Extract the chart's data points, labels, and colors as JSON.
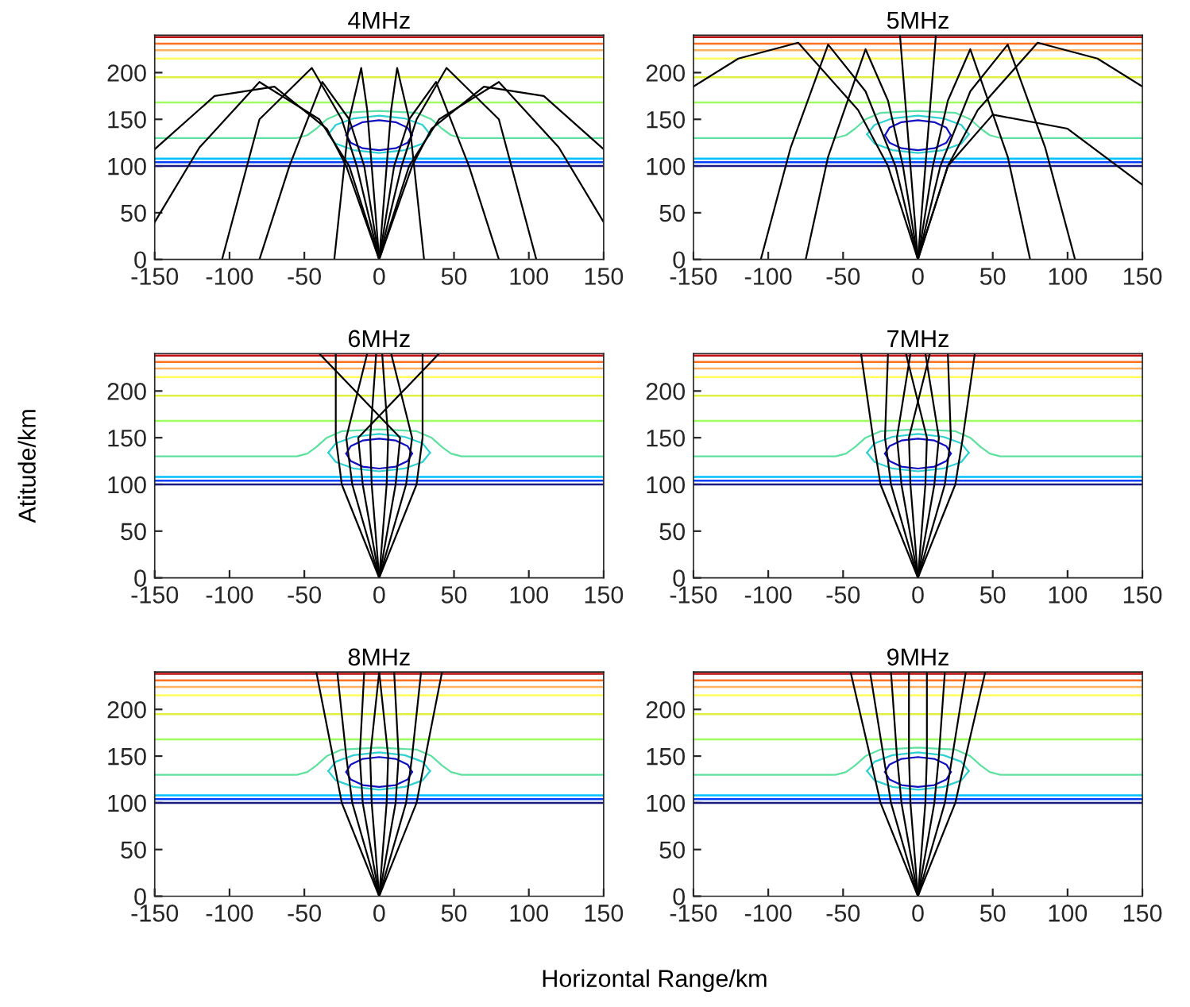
{
  "chart_data": [
    {
      "type": "line",
      "title": "4MHz",
      "xlim": [
        -150,
        150
      ],
      "xticks": [
        -150,
        -100,
        -50,
        0,
        50,
        100,
        150
      ],
      "ylim": [
        0,
        240
      ],
      "yticks": [
        0,
        50,
        100,
        150,
        200
      ],
      "grid": false,
      "legend": false,
      "ref_lines": [
        {
          "axis": "y",
          "value": 100,
          "color": "#1a1a80"
        },
        {
          "axis": "y",
          "value": 104,
          "color": "#0040ff"
        },
        {
          "axis": "y",
          "value": 108,
          "color": "#00c0ff"
        },
        {
          "axis": "y",
          "value": 168,
          "color": "#a0ff60"
        },
        {
          "axis": "y",
          "value": 195,
          "color": "#e0f040"
        },
        {
          "axis": "y",
          "value": 215,
          "color": "#ffff60"
        },
        {
          "axis": "y",
          "value": 224,
          "color": "#ffb060"
        },
        {
          "axis": "y",
          "value": 231,
          "color": "#ff7020"
        },
        {
          "axis": "y",
          "value": 238,
          "color": "#c01010"
        }
      ],
      "series": [
        {
          "color": "#60e0a0",
          "x": [
            -150,
            -55,
            -48,
            -42,
            -35,
            -25,
            0,
            25,
            35,
            42,
            48,
            55,
            150
          ],
          "values": [
            130,
            130,
            133,
            140,
            150,
            157,
            159,
            157,
            150,
            140,
            133,
            130,
            130
          ]
        },
        {
          "color": "#30d0d0",
          "x": [
            -34,
            -29,
            -17,
            0,
            17,
            29,
            34
          ],
          "values": [
            134,
            144,
            151,
            154,
            151,
            144,
            134
          ]
        },
        {
          "color": "#30d0d0",
          "x": [
            -34,
            -29,
            -17,
            0,
            17,
            29,
            34
          ],
          "values": [
            134,
            124,
            117,
            114,
            117,
            124,
            134
          ]
        },
        {
          "color": "#1010c0",
          "x": [
            -22,
            -19,
            -11,
            0,
            11,
            19,
            22
          ],
          "values": [
            133,
            141,
            147,
            149,
            147,
            141,
            133
          ]
        },
        {
          "color": "#1010c0",
          "x": [
            -22,
            -19,
            -11,
            0,
            11,
            19,
            22
          ],
          "values": [
            133,
            125,
            119,
            117,
            119,
            125,
            133
          ]
        },
        {
          "color": "#000000",
          "x": [
            0,
            -22,
            -35,
            -70,
            -110,
            -150
          ],
          "values": [
            0,
            100,
            140,
            185,
            175,
            118
          ]
        },
        {
          "color": "#000000",
          "x": [
            0,
            22,
            35,
            70,
            110,
            150
          ],
          "values": [
            0,
            100,
            140,
            185,
            175,
            118
          ]
        },
        {
          "color": "#000000",
          "x": [
            0,
            -15,
            -25,
            -45,
            -80,
            -105
          ],
          "values": [
            0,
            100,
            150,
            205,
            150,
            0
          ]
        },
        {
          "color": "#000000",
          "x": [
            0,
            15,
            25,
            45,
            80,
            105
          ],
          "values": [
            0,
            100,
            150,
            205,
            150,
            0
          ]
        },
        {
          "color": "#000000",
          "x": [
            0,
            -10,
            -20,
            -38,
            -60,
            -80
          ],
          "values": [
            0,
            100,
            150,
            190,
            100,
            0
          ]
        },
        {
          "color": "#000000",
          "x": [
            0,
            10,
            20,
            38,
            60,
            80
          ],
          "values": [
            0,
            100,
            150,
            190,
            100,
            0
          ]
        },
        {
          "color": "#000000",
          "x": [
            0,
            -5,
            -8,
            -12,
            -20,
            -30
          ],
          "values": [
            0,
            100,
            160,
            205,
            150,
            0
          ]
        },
        {
          "color": "#000000",
          "x": [
            0,
            5,
            8,
            12,
            20,
            30
          ],
          "values": [
            0,
            100,
            160,
            205,
            150,
            0
          ]
        },
        {
          "color": "#000000",
          "x": [
            0,
            -20,
            -40,
            -80,
            -120,
            -150
          ],
          "values": [
            0,
            100,
            150,
            190,
            120,
            40
          ]
        },
        {
          "color": "#000000",
          "x": [
            0,
            20,
            40,
            80,
            120,
            150
          ],
          "values": [
            0,
            100,
            150,
            190,
            120,
            40
          ]
        }
      ]
    },
    {
      "type": "line",
      "title": "5MHz",
      "xlim": [
        -150,
        150
      ],
      "xticks": [
        -150,
        -100,
        -50,
        0,
        50,
        100,
        150
      ],
      "ylim": [
        0,
        240
      ],
      "yticks": [
        0,
        50,
        100,
        150,
        200
      ],
      "grid": false,
      "legend": false,
      "ref_lines": [
        {
          "axis": "y",
          "value": 100,
          "color": "#1a1a80"
        },
        {
          "axis": "y",
          "value": 104,
          "color": "#0040ff"
        },
        {
          "axis": "y",
          "value": 108,
          "color": "#00c0ff"
        },
        {
          "axis": "y",
          "value": 168,
          "color": "#a0ff60"
        },
        {
          "axis": "y",
          "value": 195,
          "color": "#e0f040"
        },
        {
          "axis": "y",
          "value": 215,
          "color": "#ffff60"
        },
        {
          "axis": "y",
          "value": 224,
          "color": "#ffb060"
        },
        {
          "axis": "y",
          "value": 231,
          "color": "#ff7020"
        },
        {
          "axis": "y",
          "value": 238,
          "color": "#c01010"
        }
      ],
      "series": [
        {
          "color": "#60e0a0",
          "x": [
            -150,
            -55,
            -48,
            -42,
            -35,
            -25,
            0,
            25,
            35,
            42,
            48,
            55,
            150
          ],
          "values": [
            130,
            130,
            133,
            140,
            150,
            157,
            159,
            157,
            150,
            140,
            133,
            130,
            130
          ]
        },
        {
          "color": "#30d0d0",
          "x": [
            -34,
            -29,
            -17,
            0,
            17,
            29,
            34
          ],
          "values": [
            134,
            144,
            151,
            154,
            151,
            144,
            134
          ]
        },
        {
          "color": "#30d0d0",
          "x": [
            -34,
            -29,
            -17,
            0,
            17,
            29,
            34
          ],
          "values": [
            134,
            124,
            117,
            114,
            117,
            124,
            134
          ]
        },
        {
          "color": "#1010c0",
          "x": [
            -22,
            -19,
            -11,
            0,
            11,
            19,
            22
          ],
          "values": [
            133,
            141,
            147,
            149,
            147,
            141,
            133
          ]
        },
        {
          "color": "#1010c0",
          "x": [
            -22,
            -19,
            -11,
            0,
            11,
            19,
            22
          ],
          "values": [
            133,
            125,
            119,
            117,
            119,
            125,
            133
          ]
        },
        {
          "color": "#000000",
          "x": [
            0,
            -20,
            -40,
            -80,
            -120,
            -150
          ],
          "values": [
            0,
            100,
            160,
            232,
            215,
            185
          ]
        },
        {
          "color": "#000000",
          "x": [
            0,
            20,
            40,
            80,
            120,
            150
          ],
          "values": [
            0,
            100,
            160,
            232,
            215,
            185
          ]
        },
        {
          "color": "#000000",
          "x": [
            0,
            -15,
            -35,
            -60,
            -85,
            -105
          ],
          "values": [
            0,
            100,
            180,
            230,
            120,
            0
          ]
        },
        {
          "color": "#000000",
          "x": [
            0,
            15,
            35,
            60,
            85,
            105
          ],
          "values": [
            0,
            100,
            180,
            230,
            120,
            0
          ]
        },
        {
          "color": "#000000",
          "x": [
            0,
            -10,
            -20,
            -35,
            -60,
            -75
          ],
          "values": [
            0,
            100,
            170,
            225,
            110,
            0
          ]
        },
        {
          "color": "#000000",
          "x": [
            0,
            10,
            20,
            35,
            60,
            75
          ],
          "values": [
            0,
            100,
            170,
            225,
            110,
            0
          ]
        },
        {
          "color": "#000000",
          "x": [
            0,
            -5,
            -12
          ],
          "values": [
            0,
            100,
            240
          ]
        },
        {
          "color": "#000000",
          "x": [
            0,
            5,
            12
          ],
          "values": [
            0,
            100,
            240
          ]
        },
        {
          "color": "#000000",
          "x": [
            0,
            20,
            50,
            100,
            150
          ],
          "values": [
            0,
            100,
            155,
            140,
            80
          ]
        }
      ]
    },
    {
      "type": "line",
      "title": "6MHz",
      "ylabel": "Atitude/km",
      "xlim": [
        -150,
        150
      ],
      "xticks": [
        -150,
        -100,
        -50,
        0,
        50,
        100,
        150
      ],
      "ylim": [
        0,
        240
      ],
      "yticks": [
        0,
        50,
        100,
        150,
        200
      ],
      "grid": false,
      "legend": false,
      "ref_lines": [
        {
          "axis": "y",
          "value": 100,
          "color": "#1a1a80"
        },
        {
          "axis": "y",
          "value": 104,
          "color": "#0040ff"
        },
        {
          "axis": "y",
          "value": 108,
          "color": "#00c0ff"
        },
        {
          "axis": "y",
          "value": 168,
          "color": "#a0ff60"
        },
        {
          "axis": "y",
          "value": 195,
          "color": "#e0f040"
        },
        {
          "axis": "y",
          "value": 215,
          "color": "#ffff60"
        },
        {
          "axis": "y",
          "value": 224,
          "color": "#ffb060"
        },
        {
          "axis": "y",
          "value": 231,
          "color": "#ff7020"
        },
        {
          "axis": "y",
          "value": 238,
          "color": "#c01010"
        }
      ],
      "series": [
        {
          "color": "#60e0a0",
          "x": [
            -150,
            -55,
            -48,
            -42,
            -35,
            -25,
            0,
            25,
            35,
            42,
            48,
            55,
            150
          ],
          "values": [
            130,
            130,
            133,
            140,
            150,
            157,
            159,
            157,
            150,
            140,
            133,
            130,
            130
          ]
        },
        {
          "color": "#30d0d0",
          "x": [
            -34,
            -29,
            -17,
            0,
            17,
            29,
            34
          ],
          "values": [
            134,
            144,
            151,
            154,
            151,
            144,
            134
          ]
        },
        {
          "color": "#30d0d0",
          "x": [
            -34,
            -29,
            -17,
            0,
            17,
            29,
            34
          ],
          "values": [
            134,
            124,
            117,
            114,
            117,
            124,
            134
          ]
        },
        {
          "color": "#1010c0",
          "x": [
            -22,
            -19,
            -11,
            0,
            11,
            19,
            22
          ],
          "values": [
            133,
            141,
            147,
            149,
            147,
            141,
            133
          ]
        },
        {
          "color": "#1010c0",
          "x": [
            -22,
            -19,
            -11,
            0,
            11,
            19,
            22
          ],
          "values": [
            133,
            125,
            119,
            117,
            119,
            125,
            133
          ]
        },
        {
          "color": "#000000",
          "x": [
            0,
            25,
            29,
            29
          ],
          "values": [
            0,
            100,
            150,
            240
          ]
        },
        {
          "color": "#000000",
          "x": [
            0,
            -25,
            -29,
            -29
          ],
          "values": [
            0,
            100,
            150,
            240
          ]
        },
        {
          "color": "#000000",
          "x": [
            0,
            18,
            22,
            8
          ],
          "values": [
            0,
            100,
            150,
            240
          ]
        },
        {
          "color": "#000000",
          "x": [
            0,
            -18,
            -22,
            -8
          ],
          "values": [
            0,
            100,
            150,
            240
          ]
        },
        {
          "color": "#000000",
          "x": [
            0,
            11,
            14,
            -40
          ],
          "values": [
            0,
            100,
            150,
            240
          ]
        },
        {
          "color": "#000000",
          "x": [
            0,
            -11,
            -14,
            40
          ],
          "values": [
            0,
            100,
            150,
            240
          ]
        },
        {
          "color": "#000000",
          "x": [
            0,
            5,
            6,
            2
          ],
          "values": [
            0,
            100,
            150,
            240
          ]
        },
        {
          "color": "#000000",
          "x": [
            0,
            -5,
            -6,
            -2
          ],
          "values": [
            0,
            100,
            150,
            240
          ]
        }
      ]
    },
    {
      "type": "line",
      "title": "7MHz",
      "xlim": [
        -150,
        150
      ],
      "xticks": [
        -150,
        -100,
        -50,
        0,
        50,
        100,
        150
      ],
      "ylim": [
        0,
        240
      ],
      "yticks": [
        0,
        50,
        100,
        150,
        200
      ],
      "grid": false,
      "legend": false,
      "ref_lines": [
        {
          "axis": "y",
          "value": 100,
          "color": "#1a1a80"
        },
        {
          "axis": "y",
          "value": 104,
          "color": "#0040ff"
        },
        {
          "axis": "y",
          "value": 108,
          "color": "#00c0ff"
        },
        {
          "axis": "y",
          "value": 168,
          "color": "#a0ff60"
        },
        {
          "axis": "y",
          "value": 195,
          "color": "#e0f040"
        },
        {
          "axis": "y",
          "value": 215,
          "color": "#ffff60"
        },
        {
          "axis": "y",
          "value": 224,
          "color": "#ffb060"
        },
        {
          "axis": "y",
          "value": 231,
          "color": "#ff7020"
        },
        {
          "axis": "y",
          "value": 238,
          "color": "#c01010"
        }
      ],
      "series": [
        {
          "color": "#60e0a0",
          "x": [
            -150,
            -55,
            -48,
            -42,
            -35,
            -25,
            0,
            25,
            35,
            42,
            48,
            55,
            150
          ],
          "values": [
            130,
            130,
            133,
            140,
            150,
            157,
            159,
            157,
            150,
            140,
            133,
            130,
            130
          ]
        },
        {
          "color": "#30d0d0",
          "x": [
            -34,
            -29,
            -17,
            0,
            17,
            29,
            34
          ],
          "values": [
            134,
            144,
            151,
            154,
            151,
            144,
            134
          ]
        },
        {
          "color": "#30d0d0",
          "x": [
            -34,
            -29,
            -17,
            0,
            17,
            29,
            34
          ],
          "values": [
            134,
            124,
            117,
            114,
            117,
            124,
            134
          ]
        },
        {
          "color": "#1010c0",
          "x": [
            -22,
            -19,
            -11,
            0,
            11,
            19,
            22
          ],
          "values": [
            133,
            141,
            147,
            149,
            147,
            141,
            133
          ]
        },
        {
          "color": "#1010c0",
          "x": [
            -22,
            -19,
            -11,
            0,
            11,
            19,
            22
          ],
          "values": [
            133,
            125,
            119,
            117,
            119,
            125,
            133
          ]
        },
        {
          "color": "#000000",
          "x": [
            0,
            25,
            30,
            38
          ],
          "values": [
            0,
            100,
            150,
            240
          ]
        },
        {
          "color": "#000000",
          "x": [
            0,
            -25,
            -30,
            -38
          ],
          "values": [
            0,
            100,
            150,
            240
          ]
        },
        {
          "color": "#000000",
          "x": [
            0,
            18,
            22,
            20
          ],
          "values": [
            0,
            100,
            150,
            240
          ]
        },
        {
          "color": "#000000",
          "x": [
            0,
            -18,
            -22,
            -20
          ],
          "values": [
            0,
            100,
            150,
            240
          ]
        },
        {
          "color": "#000000",
          "x": [
            0,
            11,
            14,
            5
          ],
          "values": [
            0,
            100,
            150,
            240
          ]
        },
        {
          "color": "#000000",
          "x": [
            0,
            -11,
            -14,
            -5
          ],
          "values": [
            0,
            100,
            150,
            240
          ]
        },
        {
          "color": "#000000",
          "x": [
            0,
            5,
            6,
            -8
          ],
          "values": [
            0,
            100,
            150,
            240
          ]
        },
        {
          "color": "#000000",
          "x": [
            0,
            -5,
            -6,
            8
          ],
          "values": [
            0,
            100,
            150,
            240
          ]
        }
      ]
    },
    {
      "type": "line",
      "title": "8MHz",
      "xlabel": "Horizontal Range/km",
      "xlim": [
        -150,
        150
      ],
      "xticks": [
        -150,
        -100,
        -50,
        0,
        50,
        100,
        150
      ],
      "ylim": [
        0,
        240
      ],
      "yticks": [
        0,
        50,
        100,
        150,
        200
      ],
      "grid": false,
      "legend": false,
      "ref_lines": [
        {
          "axis": "y",
          "value": 100,
          "color": "#1a1a80"
        },
        {
          "axis": "y",
          "value": 104,
          "color": "#0040ff"
        },
        {
          "axis": "y",
          "value": 108,
          "color": "#00c0ff"
        },
        {
          "axis": "y",
          "value": 168,
          "color": "#a0ff60"
        },
        {
          "axis": "y",
          "value": 195,
          "color": "#e0f040"
        },
        {
          "axis": "y",
          "value": 215,
          "color": "#ffff60"
        },
        {
          "axis": "y",
          "value": 224,
          "color": "#ffb060"
        },
        {
          "axis": "y",
          "value": 231,
          "color": "#ff7020"
        },
        {
          "axis": "y",
          "value": 238,
          "color": "#c01010"
        }
      ],
      "series": [
        {
          "color": "#60e0a0",
          "x": [
            -150,
            -55,
            -48,
            -42,
            -35,
            -25,
            0,
            25,
            35,
            42,
            48,
            55,
            150
          ],
          "values": [
            130,
            130,
            133,
            140,
            150,
            157,
            159,
            157,
            150,
            140,
            133,
            130,
            130
          ]
        },
        {
          "color": "#30d0d0",
          "x": [
            -34,
            -29,
            -17,
            0,
            17,
            29,
            34
          ],
          "values": [
            134,
            144,
            151,
            154,
            151,
            144,
            134
          ]
        },
        {
          "color": "#30d0d0",
          "x": [
            -34,
            -29,
            -17,
            0,
            17,
            29,
            34
          ],
          "values": [
            134,
            124,
            117,
            114,
            117,
            124,
            134
          ]
        },
        {
          "color": "#1010c0",
          "x": [
            -22,
            -19,
            -11,
            0,
            11,
            19,
            22
          ],
          "values": [
            133,
            141,
            147,
            149,
            147,
            141,
            133
          ]
        },
        {
          "color": "#1010c0",
          "x": [
            -22,
            -19,
            -11,
            0,
            11,
            19,
            22
          ],
          "values": [
            133,
            125,
            119,
            117,
            119,
            125,
            133
          ]
        },
        {
          "color": "#000000",
          "x": [
            0,
            25,
            31,
            42
          ],
          "values": [
            0,
            100,
            150,
            240
          ]
        },
        {
          "color": "#000000",
          "x": [
            0,
            -25,
            -31,
            -42
          ],
          "values": [
            0,
            100,
            150,
            240
          ]
        },
        {
          "color": "#000000",
          "x": [
            0,
            18,
            22,
            28
          ],
          "values": [
            0,
            100,
            150,
            240
          ]
        },
        {
          "color": "#000000",
          "x": [
            0,
            -18,
            -22,
            -28
          ],
          "values": [
            0,
            100,
            150,
            240
          ]
        },
        {
          "color": "#000000",
          "x": [
            0,
            11,
            13,
            10
          ],
          "values": [
            0,
            100,
            150,
            240
          ]
        },
        {
          "color": "#000000",
          "x": [
            0,
            -11,
            -13,
            -10
          ],
          "values": [
            0,
            100,
            150,
            240
          ]
        },
        {
          "color": "#000000",
          "x": [
            0,
            5,
            6,
            0
          ],
          "values": [
            0,
            100,
            150,
            240
          ]
        },
        {
          "color": "#000000",
          "x": [
            0,
            -5,
            -6,
            0
          ],
          "values": [
            0,
            100,
            150,
            240
          ]
        }
      ]
    },
    {
      "type": "line",
      "title": "9MHz",
      "xlim": [
        -150,
        150
      ],
      "xticks": [
        -150,
        -100,
        -50,
        0,
        50,
        100,
        150
      ],
      "ylim": [
        0,
        240
      ],
      "yticks": [
        0,
        50,
        100,
        150,
        200
      ],
      "grid": false,
      "legend": false,
      "ref_lines": [
        {
          "axis": "y",
          "value": 100,
          "color": "#1a1a80"
        },
        {
          "axis": "y",
          "value": 104,
          "color": "#0040ff"
        },
        {
          "axis": "y",
          "value": 108,
          "color": "#00c0ff"
        },
        {
          "axis": "y",
          "value": 168,
          "color": "#a0ff60"
        },
        {
          "axis": "y",
          "value": 195,
          "color": "#e0f040"
        },
        {
          "axis": "y",
          "value": 215,
          "color": "#ffff60"
        },
        {
          "axis": "y",
          "value": 224,
          "color": "#ffb060"
        },
        {
          "axis": "y",
          "value": 231,
          "color": "#ff7020"
        },
        {
          "axis": "y",
          "value": 238,
          "color": "#c01010"
        }
      ],
      "series": [
        {
          "color": "#60e0a0",
          "x": [
            -150,
            -55,
            -48,
            -42,
            -35,
            -25,
            0,
            25,
            35,
            42,
            48,
            55,
            150
          ],
          "values": [
            130,
            130,
            133,
            140,
            150,
            157,
            159,
            157,
            150,
            140,
            133,
            130,
            130
          ]
        },
        {
          "color": "#30d0d0",
          "x": [
            -34,
            -29,
            -17,
            0,
            17,
            29,
            34
          ],
          "values": [
            134,
            144,
            151,
            154,
            151,
            144,
            134
          ]
        },
        {
          "color": "#30d0d0",
          "x": [
            -34,
            -29,
            -17,
            0,
            17,
            29,
            34
          ],
          "values": [
            134,
            124,
            117,
            114,
            117,
            124,
            134
          ]
        },
        {
          "color": "#1010c0",
          "x": [
            -22,
            -19,
            -11,
            0,
            11,
            19,
            22
          ],
          "values": [
            133,
            141,
            147,
            149,
            147,
            141,
            133
          ]
        },
        {
          "color": "#1010c0",
          "x": [
            -22,
            -19,
            -11,
            0,
            11,
            19,
            22
          ],
          "values": [
            133,
            125,
            119,
            117,
            119,
            125,
            133
          ]
        },
        {
          "color": "#000000",
          "x": [
            0,
            25,
            32,
            45
          ],
          "values": [
            0,
            100,
            150,
            240
          ]
        },
        {
          "color": "#000000",
          "x": [
            0,
            -25,
            -32,
            -45
          ],
          "values": [
            0,
            100,
            150,
            240
          ]
        },
        {
          "color": "#000000",
          "x": [
            0,
            18,
            23,
            32
          ],
          "values": [
            0,
            100,
            150,
            240
          ]
        },
        {
          "color": "#000000",
          "x": [
            0,
            -18,
            -23,
            -32
          ],
          "values": [
            0,
            100,
            150,
            240
          ]
        },
        {
          "color": "#000000",
          "x": [
            0,
            11,
            14,
            18
          ],
          "values": [
            0,
            100,
            150,
            240
          ]
        },
        {
          "color": "#000000",
          "x": [
            0,
            -11,
            -14,
            -18
          ],
          "values": [
            0,
            100,
            150,
            240
          ]
        },
        {
          "color": "#000000",
          "x": [
            0,
            5,
            6,
            6
          ],
          "values": [
            0,
            100,
            150,
            240
          ]
        },
        {
          "color": "#000000",
          "x": [
            0,
            -5,
            -6,
            -6
          ],
          "values": [
            0,
            100,
            150,
            240
          ]
        }
      ]
    }
  ]
}
